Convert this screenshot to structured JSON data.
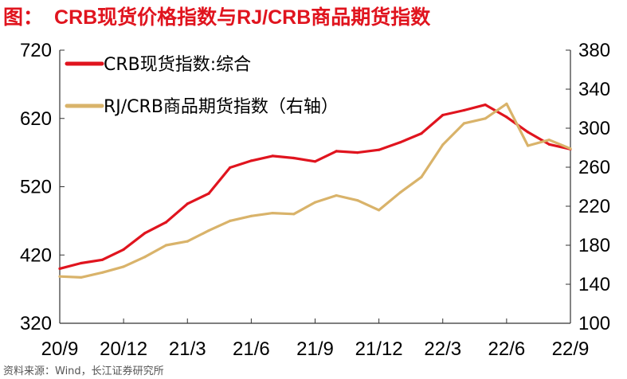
{
  "title_prefix": "图：",
  "title": "CRB现货价格指数与RJ/CRB商品期货指数",
  "source": "资料来源：Wind，长江证券研究所",
  "chart_data": {
    "type": "line",
    "x_ticks": [
      "20/9",
      "20/12",
      "21/3",
      "21/6",
      "21/9",
      "21/12",
      "22/3",
      "22/6",
      "22/9"
    ],
    "x": [
      "20/9",
      "20/10",
      "20/11",
      "20/12",
      "21/1",
      "21/2",
      "21/3",
      "21/4",
      "21/5",
      "21/6",
      "21/7",
      "21/8",
      "21/9",
      "21/10",
      "21/11",
      "21/12",
      "22/1",
      "22/2",
      "22/3",
      "22/4",
      "22/5",
      "22/6",
      "22/7",
      "22/8",
      "22/9"
    ],
    "ylim_left": [
      320,
      720
    ],
    "yticks_left": [
      320,
      420,
      520,
      620,
      720
    ],
    "ylim_right": [
      100,
      380
    ],
    "yticks_right": [
      100,
      140,
      180,
      220,
      260,
      300,
      340,
      380
    ],
    "grid": false,
    "legend_position": "top-left",
    "series": [
      {
        "name": "CRB现货指数:综合",
        "axis": "left",
        "color": "#e0141e",
        "values": [
          400,
          408,
          413,
          428,
          452,
          468,
          495,
          510,
          548,
          558,
          565,
          562,
          557,
          572,
          570,
          574,
          585,
          598,
          625,
          632,
          640,
          622,
          600,
          582,
          575
        ]
      },
      {
        "name": "RJ/CRB商品期货指数（右轴）",
        "axis": "right",
        "color": "#d9b36a",
        "values": [
          148,
          147,
          152,
          158,
          168,
          180,
          184,
          195,
          205,
          210,
          213,
          212,
          224,
          231,
          226,
          216,
          234,
          250,
          283,
          305,
          310,
          325,
          282,
          288,
          279
        ]
      }
    ]
  }
}
